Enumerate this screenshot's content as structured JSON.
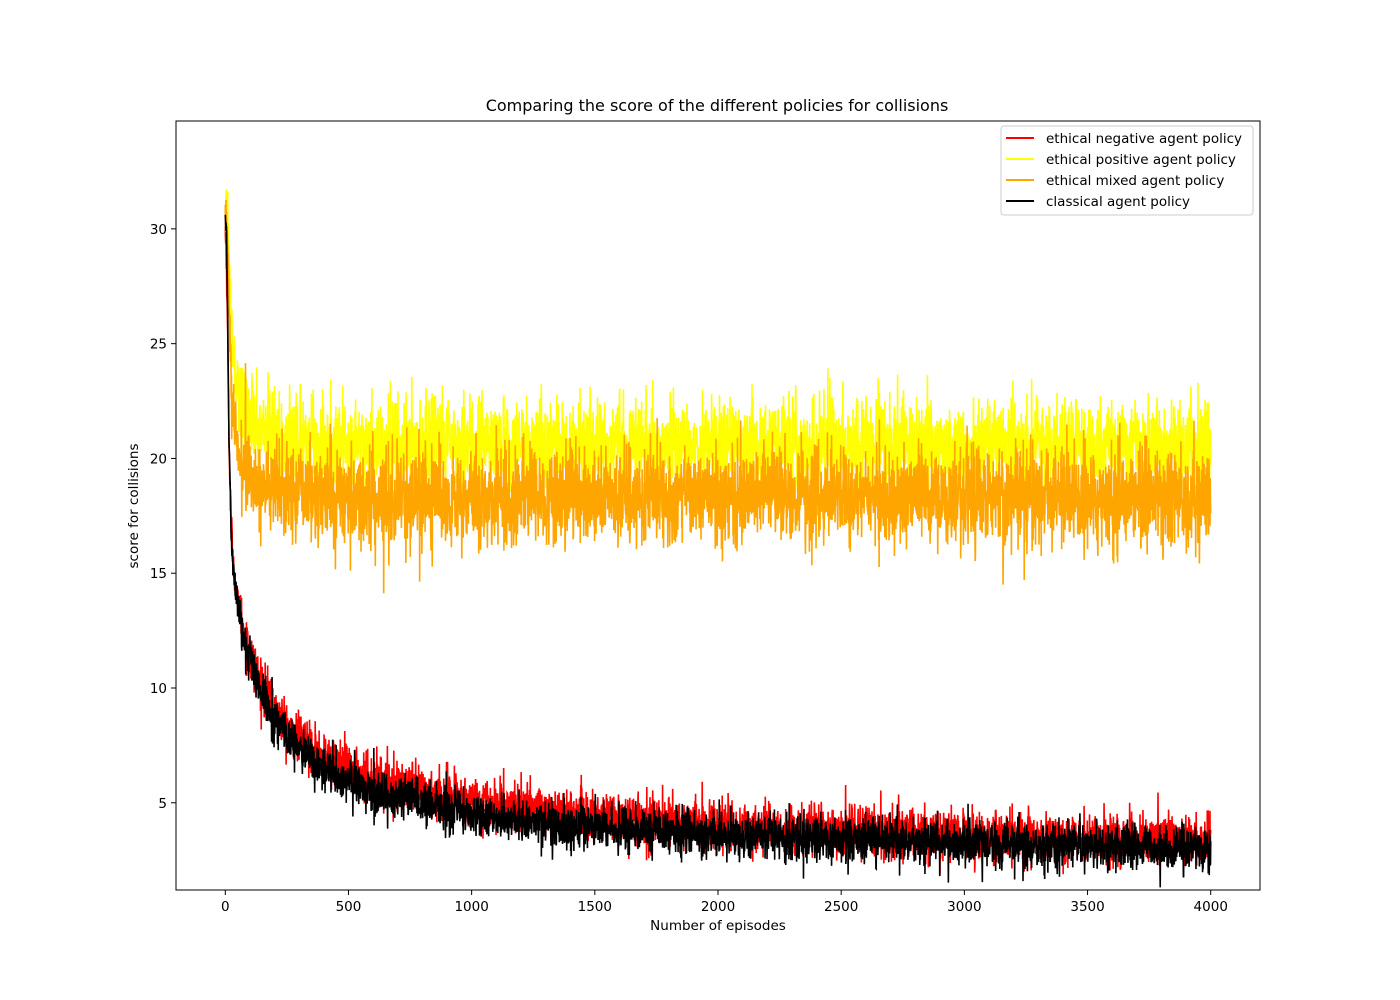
{
  "chart_data": {
    "type": "line",
    "title": "Comparing the score of the different policies for collisions",
    "xlabel": "Number of episodes",
    "ylabel": "score for collisions",
    "xlim": [
      -200,
      4200
    ],
    "ylim": [
      1.2,
      34.7
    ],
    "xticks": [
      0,
      500,
      1000,
      1500,
      2000,
      2500,
      3000,
      3500,
      4000
    ],
    "yticks": [
      5,
      10,
      15,
      20,
      25,
      30
    ],
    "grid": false,
    "legend_position": "top-right",
    "x_points": [
      0,
      5,
      10,
      15,
      20,
      25,
      30,
      40,
      50,
      60,
      75,
      100,
      125,
      150,
      200,
      250,
      300,
      350,
      400,
      500,
      600,
      700,
      800,
      1000,
      1200,
      1500,
      1750,
      2000,
      2250,
      2500,
      3000,
      3500,
      4000
    ],
    "series": [
      {
        "name": "ethical negative agent policy",
        "color": "#ff0000",
        "noise": 0.55,
        "values": [
          30.0,
          28.5,
          25.0,
          21.0,
          18.5,
          17.0,
          16.0,
          14.5,
          13.8,
          13.2,
          12.5,
          11.5,
          10.7,
          10.0,
          9.0,
          8.3,
          7.8,
          7.4,
          7.0,
          6.4,
          6.0,
          5.7,
          5.5,
          5.1,
          4.8,
          4.4,
          4.2,
          4.0,
          3.9,
          3.8,
          3.6,
          3.45,
          3.3
        ]
      },
      {
        "name": "ethical positive agent policy",
        "color": "#ffff00",
        "noise": 1.0,
        "values": [
          31.0,
          31.5,
          30.5,
          29.0,
          27.5,
          26.0,
          25.0,
          23.8,
          23.0,
          22.5,
          22.0,
          21.6,
          21.4,
          21.2,
          21.0,
          20.9,
          20.8,
          20.8,
          20.7,
          20.7,
          20.6,
          20.6,
          20.6,
          20.6,
          20.6,
          20.5,
          20.5,
          20.5,
          20.5,
          20.5,
          20.5,
          20.5,
          20.5
        ]
      },
      {
        "name": "ethical mixed agent policy",
        "color": "#ffa500",
        "noise": 1.05,
        "values": [
          31.0,
          30.5,
          29.0,
          27.0,
          25.0,
          23.0,
          22.0,
          21.0,
          20.4,
          20.0,
          19.6,
          19.2,
          19.0,
          18.9,
          18.6,
          18.5,
          18.5,
          18.4,
          18.4,
          18.3,
          18.3,
          18.3,
          18.3,
          18.3,
          18.3,
          18.3,
          18.3,
          18.3,
          18.3,
          18.3,
          18.3,
          18.3,
          18.3
        ]
      },
      {
        "name": "classical agent policy",
        "color": "#000000",
        "noise": 0.5,
        "values": [
          30.5,
          30.0,
          26.0,
          21.0,
          18.5,
          16.5,
          15.5,
          14.3,
          13.6,
          13.0,
          12.2,
          11.2,
          10.3,
          9.6,
          8.6,
          7.9,
          7.3,
          6.9,
          6.5,
          5.9,
          5.5,
          5.2,
          4.9,
          4.5,
          4.2,
          3.9,
          3.7,
          3.6,
          3.5,
          3.4,
          3.25,
          3.1,
          3.0
        ]
      }
    ]
  }
}
